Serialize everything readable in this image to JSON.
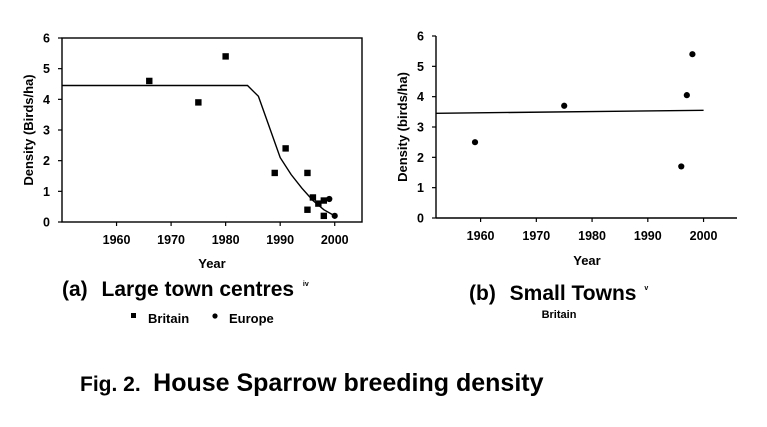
{
  "figure_caption": {
    "prefix": "Fig. 2.",
    "title": "House Sparrow breeding density"
  },
  "chart_data": [
    {
      "type": "scatter",
      "panel_label": "(a)",
      "title": "Large town centres",
      "title_superscript": "iv",
      "xlabel": "Year",
      "ylabel": "Density (Birds/ha)",
      "xlim": [
        1950,
        2005
      ],
      "ylim": [
        0,
        6
      ],
      "x_ticks": [
        1960,
        1970,
        1980,
        1990,
        2000
      ],
      "y_ticks": [
        0,
        1,
        2,
        3,
        4,
        5,
        6
      ],
      "grid": false,
      "legend_position": "bottom",
      "series": [
        {
          "name": "Britain",
          "marker": "square",
          "points": [
            {
              "x": 1966,
              "y": 4.6
            },
            {
              "x": 1975,
              "y": 3.9
            },
            {
              "x": 1980,
              "y": 5.4
            },
            {
              "x": 1989,
              "y": 1.6
            },
            {
              "x": 1991,
              "y": 2.4
            },
            {
              "x": 1995,
              "y": 1.6
            },
            {
              "x": 1995,
              "y": 0.4
            },
            {
              "x": 1996,
              "y": 0.8
            },
            {
              "x": 1997,
              "y": 0.6
            },
            {
              "x": 1998,
              "y": 0.7
            },
            {
              "x": 1998,
              "y": 0.2
            }
          ]
        },
        {
          "name": "Europe",
          "marker": "circle",
          "points": [
            {
              "x": 1999,
              "y": 0.75
            },
            {
              "x": 2000,
              "y": 0.2
            }
          ]
        }
      ],
      "fitted_curve": [
        {
          "x": 1950,
          "y": 4.45
        },
        {
          "x": 1984,
          "y": 4.45
        },
        {
          "x": 1986,
          "y": 4.1
        },
        {
          "x": 1988,
          "y": 3.1
        },
        {
          "x": 1990,
          "y": 2.1
        },
        {
          "x": 1992,
          "y": 1.55
        },
        {
          "x": 1994,
          "y": 1.1
        },
        {
          "x": 1996,
          "y": 0.7
        },
        {
          "x": 1998,
          "y": 0.4
        },
        {
          "x": 2000,
          "y": 0.2
        }
      ]
    },
    {
      "type": "scatter",
      "panel_label": "(b)",
      "title": "Small Towns",
      "title_superscript": "v",
      "subtitle": "Britain",
      "xlabel": "Year",
      "ylabel": "Density (birds/ha)",
      "xlim": [
        1952,
        2006
      ],
      "ylim": [
        0,
        6
      ],
      "x_ticks": [
        1960,
        1970,
        1980,
        1990,
        2000
      ],
      "y_ticks": [
        0,
        1,
        2,
        3,
        4,
        5,
        6
      ],
      "grid": false,
      "series": [
        {
          "name": "Britain",
          "marker": "circle",
          "points": [
            {
              "x": 1959,
              "y": 2.5
            },
            {
              "x": 1975,
              "y": 3.7
            },
            {
              "x": 1996,
              "y": 1.7
            },
            {
              "x": 1997,
              "y": 4.05
            },
            {
              "x": 1998,
              "y": 5.4
            }
          ]
        }
      ],
      "fitted_curve": [
        {
          "x": 1952,
          "y": 3.45
        },
        {
          "x": 2000,
          "y": 3.55
        }
      ]
    }
  ]
}
